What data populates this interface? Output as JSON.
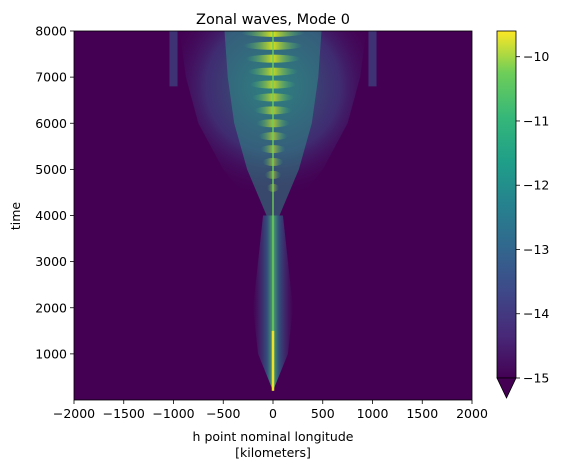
{
  "chart_data": {
    "type": "heatmap",
    "title": "Zonal waves, Mode 0",
    "xlabel": "h point nominal longitude",
    "xlabel_units": "[kilometers]",
    "ylabel": "time",
    "xlim": [
      -2000,
      2000
    ],
    "ylim": [
      0,
      8000
    ],
    "x_ticks": [
      -2000,
      -1500,
      -1000,
      -500,
      0,
      500,
      1000,
      1500,
      2000
    ],
    "x_tick_labels": [
      "−2000",
      "−1500",
      "−1000",
      "−500",
      "0",
      "500",
      "1000",
      "1500",
      "2000"
    ],
    "y_ticks": [
      1000,
      2000,
      3000,
      4000,
      5000,
      6000,
      7000,
      8000
    ],
    "y_tick_labels": [
      "1000",
      "2000",
      "3000",
      "4000",
      "5000",
      "6000",
      "7000",
      "8000"
    ],
    "colorbar": {
      "colormap": "viridis",
      "vmin": -15,
      "vmax": -9.6,
      "extend": "min",
      "ticks": [
        -15,
        -14,
        -13,
        -12,
        -11,
        -10
      ],
      "tick_labels": [
        "−15",
        "−14",
        "−13",
        "−12",
        "−11",
        "−10"
      ]
    },
    "field_description_points": [
      {
        "time": 200,
        "half_width_km": 0
      },
      {
        "time": 1000,
        "half_width_km": 150
      },
      {
        "time": 2000,
        "half_width_km": 200
      },
      {
        "time": 3000,
        "half_width_km": 150
      },
      {
        "time": 4000,
        "half_width_km": 100
      },
      {
        "time": 5000,
        "half_width_km": 400
      },
      {
        "time": 6000,
        "half_width_km": 600
      },
      {
        "time": 7000,
        "half_width_km": 700
      },
      {
        "time": 8000,
        "half_width_km": 750
      }
    ],
    "colors": {
      "background": "#440154"
    }
  }
}
